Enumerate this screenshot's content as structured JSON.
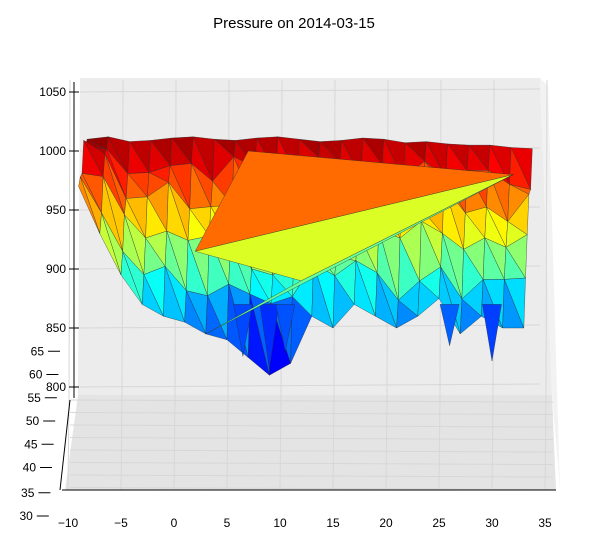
{
  "chart_data": {
    "type": "surface3d",
    "title": "Pressure on 2014-03-15",
    "colormap": "jet",
    "x_ticks": [
      "−10",
      "−5",
      "0",
      "5",
      "10",
      "15",
      "20",
      "25",
      "30",
      "35"
    ],
    "y_ticks": [
      "30",
      "35",
      "40",
      "45",
      "50",
      "55",
      "60",
      "65"
    ],
    "z_ticks": [
      "800",
      "850",
      "900",
      "950",
      "1000",
      "1050"
    ],
    "xlim": [
      -10,
      35
    ],
    "ylim": [
      30,
      70
    ],
    "zlim": [
      795,
      1050
    ],
    "grid": true,
    "surface_profile": {
      "x": [
        -9,
        -7,
        -5,
        -3,
        -1,
        1,
        3,
        5,
        7,
        9,
        11,
        13,
        15,
        17,
        19,
        21,
        23,
        25,
        27,
        29,
        31,
        33
      ],
      "back_edge": [
        1010,
        1012,
        1008,
        1009,
        1011,
        1012,
        1010,
        1009,
        1011,
        1012,
        1010,
        1008,
        1009,
        1011,
        1010,
        1007,
        1008,
        1006,
        1005,
        1005,
        1003,
        1002
      ],
      "front_edge": [
        970,
        930,
        895,
        870,
        860,
        855,
        845,
        840,
        825,
        810,
        820,
        860,
        850,
        870,
        860,
        850,
        860,
        875,
        845,
        860,
        850,
        850
      ],
      "deep_troughs": [
        {
          "x": 6.5,
          "z": 826
        },
        {
          "x": 9,
          "z": 815
        },
        {
          "x": 10.5,
          "z": 830
        },
        {
          "x": 26,
          "z": 835
        },
        {
          "x": 30,
          "z": 822
        }
      ]
    }
  }
}
